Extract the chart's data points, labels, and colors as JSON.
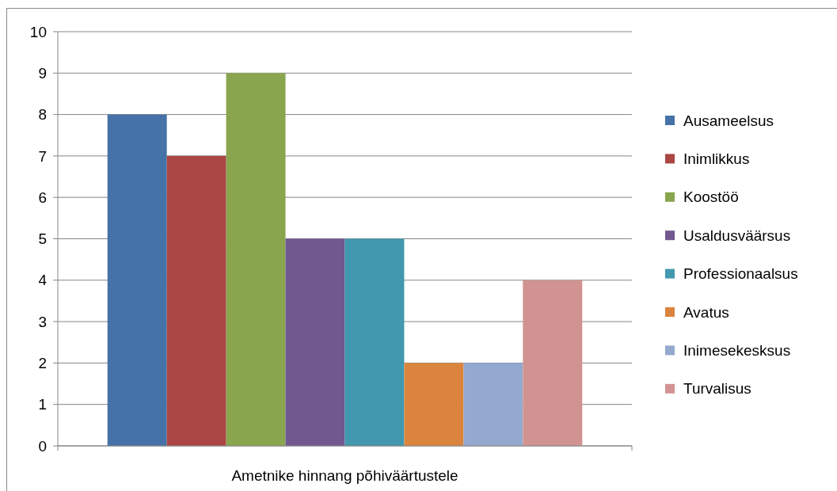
{
  "chart_data": {
    "type": "bar",
    "categories": [
      "Ametnike hinnang põhiväärtustele"
    ],
    "series": [
      {
        "name": "Ausameelsus",
        "color": "#4572a7",
        "values": [
          8
        ]
      },
      {
        "name": "Inimlikkus",
        "color": "#aa4643",
        "values": [
          7
        ]
      },
      {
        "name": "Koostöö",
        "color": "#89a54e",
        "values": [
          9
        ]
      },
      {
        "name": "Usaldusväärsus",
        "color": "#71588f",
        "values": [
          5
        ]
      },
      {
        "name": "Professionaalsus",
        "color": "#4198af",
        "values": [
          5
        ]
      },
      {
        "name": "Avatus",
        "color": "#db843d",
        "values": [
          2
        ]
      },
      {
        "name": "Inimesekesksus",
        "color": "#93a9cf",
        "values": [
          2
        ]
      },
      {
        "name": "Turvalisus",
        "color": "#d19392",
        "values": [
          4
        ]
      }
    ],
    "ylim": [
      0,
      10
    ],
    "yticks": [
      0,
      1,
      2,
      3,
      4,
      5,
      6,
      7,
      8,
      9,
      10
    ],
    "grid": "y",
    "legend": "right"
  }
}
